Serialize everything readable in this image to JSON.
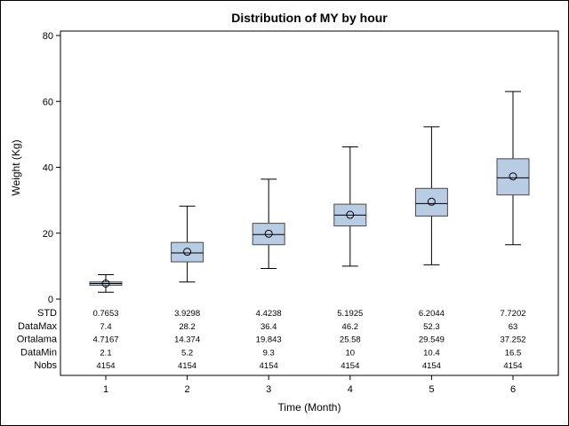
{
  "chart_data": {
    "type": "box",
    "title": "Distribution of MY by hour",
    "xlabel": "Time (Month)",
    "ylabel": "Weight (Kg)",
    "ylim": [
      0,
      80
    ],
    "yticks": [
      0,
      20,
      40,
      60,
      80
    ],
    "categories": [
      "1",
      "2",
      "3",
      "4",
      "5",
      "6"
    ],
    "boxes": [
      {
        "category": "1",
        "min": 2.1,
        "q1": 4.2,
        "median": 4.7,
        "q3": 5.2,
        "max": 7.4,
        "mean": 4.7167
      },
      {
        "category": "2",
        "min": 5.2,
        "q1": 11.3,
        "median": 14.0,
        "q3": 17.2,
        "max": 28.2,
        "mean": 14.374
      },
      {
        "category": "3",
        "min": 9.3,
        "q1": 16.5,
        "median": 19.6,
        "q3": 23.0,
        "max": 36.4,
        "mean": 19.843
      },
      {
        "category": "4",
        "min": 10.0,
        "q1": 22.2,
        "median": 25.5,
        "q3": 28.8,
        "max": 46.2,
        "mean": 25.58
      },
      {
        "category": "5",
        "min": 10.4,
        "q1": 25.2,
        "median": 29.0,
        "q3": 33.6,
        "max": 52.3,
        "mean": 29.549
      },
      {
        "category": "6",
        "min": 16.5,
        "q1": 31.6,
        "median": 36.8,
        "q3": 42.6,
        "max": 63.0,
        "mean": 37.252
      }
    ],
    "stats_table": {
      "rows": [
        {
          "label": "STD",
          "values": [
            "0.7653",
            "3.9298",
            "4.4238",
            "5.1925",
            "6.2044",
            "7.7202"
          ]
        },
        {
          "label": "DataMax",
          "values": [
            "7.4",
            "28.2",
            "36.4",
            "46.2",
            "52.3",
            "63"
          ]
        },
        {
          "label": "Ortalama",
          "values": [
            "4.7167",
            "14.374",
            "19.843",
            "25.58",
            "29.549",
            "37.252"
          ]
        },
        {
          "label": "DataMin",
          "values": [
            "2.1",
            "5.2",
            "9.3",
            "10",
            "10.4",
            "16.5"
          ]
        },
        {
          "label": "Nobs",
          "values": [
            "4154",
            "4154",
            "4154",
            "4154",
            "4154",
            "4154"
          ]
        }
      ]
    },
    "grid": false,
    "legend": "none",
    "colors": {
      "box_fill": "#b8cce4",
      "box_stroke": "#4a4a4a",
      "line": "#000000",
      "background": "#ffffff"
    }
  }
}
